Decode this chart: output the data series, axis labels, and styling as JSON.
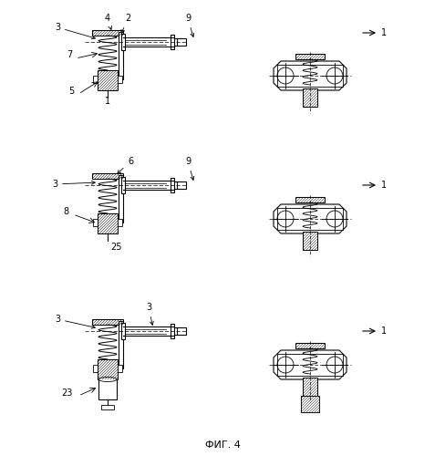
{
  "title": "ФИГ. 4",
  "background": "#ffffff",
  "line_color": "#000000",
  "fig_width": 4.88,
  "fig_height": 5.0,
  "dpi": 100
}
